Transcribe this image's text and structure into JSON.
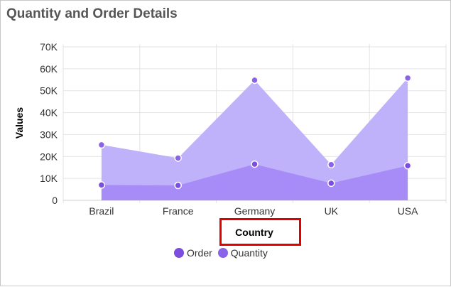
{
  "chart_data": {
    "type": "area",
    "title": "Quantity and Order Details",
    "xlabel": "Country",
    "ylabel": "Values",
    "categories": [
      "Brazil",
      "France",
      "Germany",
      "UK",
      "USA"
    ],
    "ylim": [
      0,
      70000
    ],
    "yticks": [
      0,
      10000,
      20000,
      30000,
      40000,
      50000,
      60000,
      70000
    ],
    "ytick_labels": [
      "0",
      "10K",
      "20K",
      "30K",
      "40K",
      "50K",
      "60K",
      "70K"
    ],
    "grid": true,
    "legend_position": "bottom",
    "series": [
      {
        "name": "Order",
        "values": [
          7000,
          6800,
          16500,
          7800,
          15800
        ],
        "color": "#8b5cf6"
      },
      {
        "name": "Quantity",
        "values": [
          25300,
          19300,
          54800,
          16300,
          55800
        ],
        "color": "#9b7ff0"
      }
    ]
  },
  "colors": {
    "order_fill": "#a487f7",
    "quantity_fill": "#bcaefa",
    "marker_order": "#7c4ddf",
    "marker_quantity": "#8a63e8",
    "highlight": "#e00000"
  }
}
